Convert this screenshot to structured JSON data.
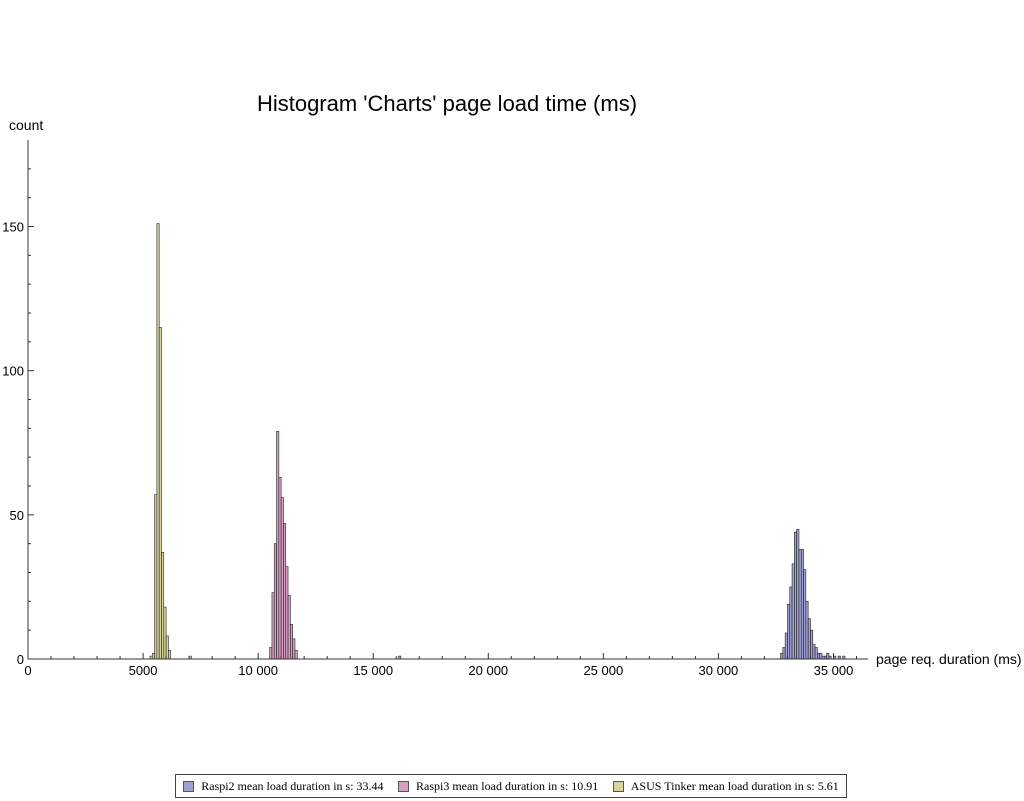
{
  "chart_data": {
    "type": "bar",
    "title": "Histogram 'Charts' page load time (ms)",
    "xlabel": "page req. duration (ms)",
    "ylabel": "count",
    "xlim": [
      0,
      37000
    ],
    "ylim": [
      0,
      180
    ],
    "bin_width": 100,
    "x_ticks": [
      0,
      5000,
      10000,
      15000,
      20000,
      25000,
      30000,
      35000
    ],
    "x_tick_labels": [
      "0",
      "5000",
      "10 000",
      "15 000",
      "20 000",
      "25 000",
      "30 000",
      "35 000"
    ],
    "y_ticks": [
      0,
      50,
      100,
      150
    ],
    "y_tick_labels": [
      "0",
      "50",
      "100",
      "150"
    ],
    "grid": false,
    "legend_position": "bottom",
    "series": [
      {
        "name": "Raspi2 mean load duration in s: 33.44",
        "color": "#9ea0d2",
        "x": [
          32700,
          32800,
          32900,
          33000,
          33100,
          33200,
          33300,
          33400,
          33500,
          33600,
          33700,
          33800,
          33900,
          34000,
          34100,
          34200,
          34300,
          34400,
          34500,
          34600,
          34700,
          34800,
          35000,
          35200,
          35400
        ],
        "values": [
          2,
          4,
          9,
          19,
          25,
          33,
          44,
          45,
          38,
          38,
          31,
          20,
          14,
          10,
          5,
          4,
          2,
          2,
          1,
          1,
          2,
          1,
          1,
          1,
          1
        ]
      },
      {
        "name": "Raspi3 mean load duration in s: 10.91",
        "color": "#d89ec4",
        "x": [
          10500,
          10600,
          10700,
          10800,
          10900,
          11000,
          11100,
          11200,
          11300,
          11400,
          11500,
          11600,
          16100
        ],
        "values": [
          4,
          23,
          40,
          79,
          63,
          56,
          47,
          32,
          22,
          12,
          7,
          3,
          1
        ]
      },
      {
        "name": "ASUS Tinker mean load duration in s: 5.61",
        "color": "#d8d49a",
        "x": [
          5300,
          5400,
          5500,
          5600,
          5700,
          5800,
          5900,
          6000,
          6100,
          7000
        ],
        "values": [
          1,
          2,
          57,
          151,
          115,
          37,
          18,
          8,
          3,
          1
        ]
      }
    ]
  }
}
